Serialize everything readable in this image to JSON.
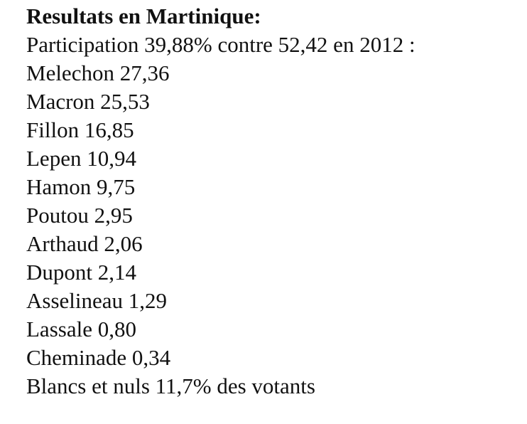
{
  "title": "Resultats en Martinique:",
  "lines": [
    "Participation 39,88% contre 52,42 en 2012 :",
    "Melechon 27,36",
    "Macron 25,53",
    "Fillon 16,85",
    "Lepen 10,94",
    "Hamon 9,75",
    "Poutou 2,95",
    "Arthaud 2,06",
    "Dupont 2,14",
    "Asselineau 1,29",
    "Lassale 0,80",
    "Cheminade 0,34",
    "Blancs et nuls 11,7% des votants"
  ]
}
